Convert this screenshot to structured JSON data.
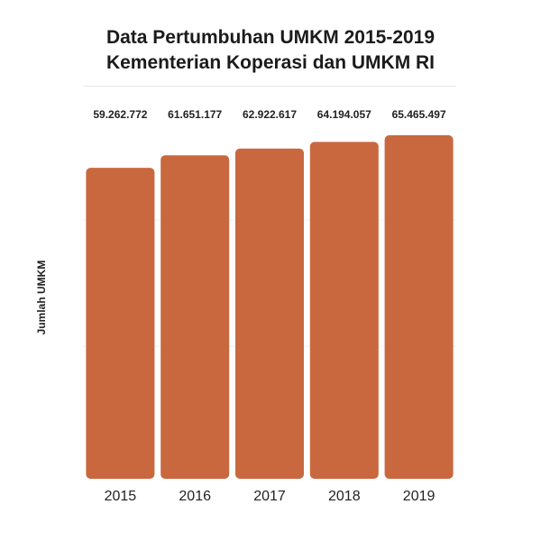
{
  "chart_data": {
    "type": "bar",
    "title_lines": [
      "Data Pertumbuhan UMKM 2015-2019",
      "Kementerian Koperasi dan UMKM RI"
    ],
    "xlabel": "",
    "ylabel": "Jumlah UMKM",
    "categories": [
      "2015",
      "2016",
      "2017",
      "2018",
      "2019"
    ],
    "values": [
      59262772,
      61651177,
      62922617,
      64194057,
      65465497
    ],
    "value_labels": [
      "59.262.772",
      "61.651.177",
      "62.922.617",
      "64.194.057",
      "65.465.497"
    ],
    "bar_color": "#c9683f",
    "grid": true,
    "legend": "none"
  }
}
